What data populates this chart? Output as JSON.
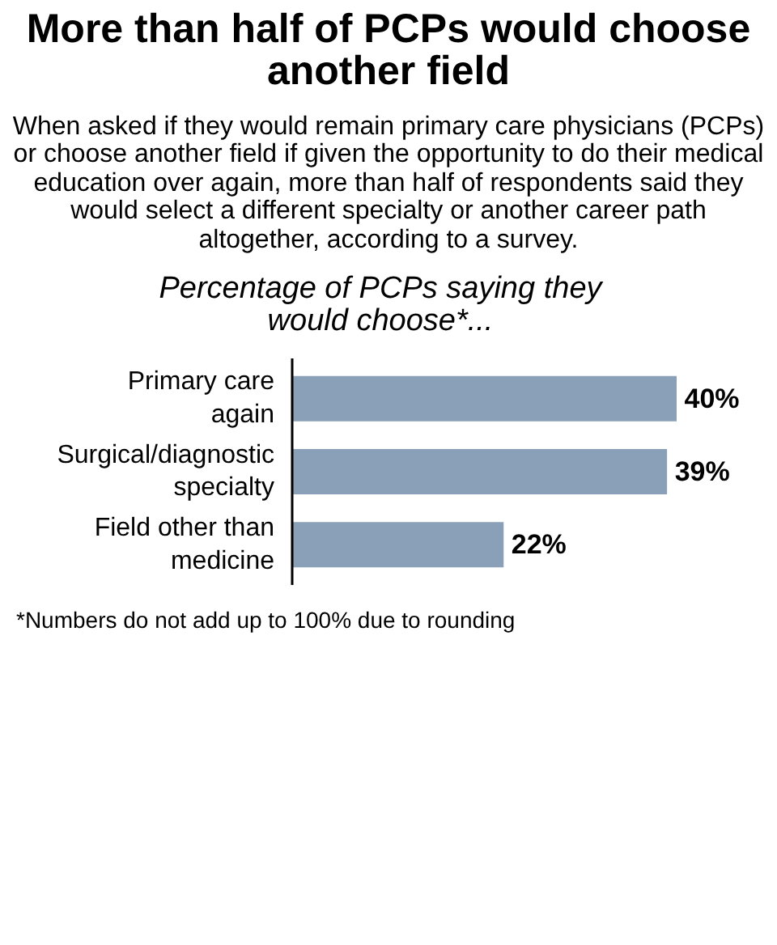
{
  "chart_data": {
    "type": "bar",
    "orientation": "horizontal",
    "title": "More than half of PCPs would choose another field",
    "subtitle": "When asked if they would remain primary care physicians (PCPs) or choose another field if given the opportunity to do their medical education over again, more than half of respondents said they would select a different specialty or another career path altogether, according to a survey.",
    "annotations": [
      "Percentage of PCPs saying they would choose*...",
      "*Numbers do not add up to 100% due to rounding"
    ],
    "categories": [
      "Primary care\nagain",
      "Surgical/diagnostic\nspecialty",
      "Field other than\nmedicine"
    ],
    "values": [
      40,
      39,
      22
    ],
    "color": "#8a9fb8",
    "value_labels": [
      "40%",
      "39%",
      "22%"
    ],
    "grid": false
  }
}
